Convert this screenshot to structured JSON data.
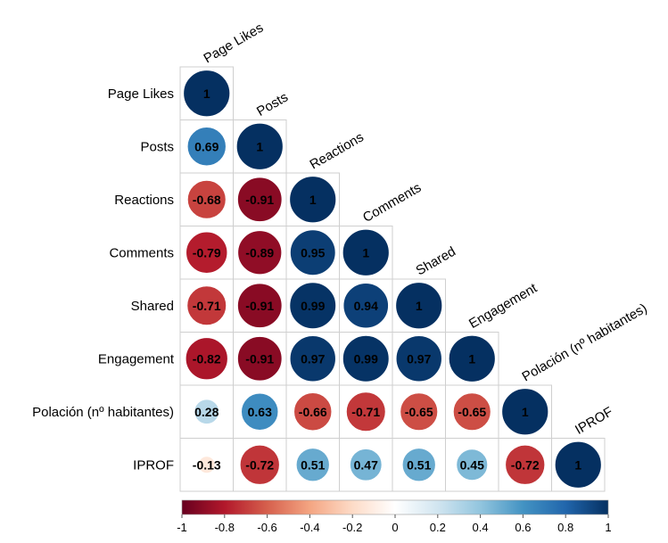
{
  "chart_data": {
    "type": "heatmap",
    "style": "corrplot-lower-circle",
    "variables": [
      "Page Likes",
      "Posts",
      "Reactions",
      "Comments",
      "Shared",
      "Engagement",
      "Polación (nº habitantes)",
      "IPROF"
    ],
    "matrix_lower": [
      [
        1
      ],
      [
        0.69,
        1
      ],
      [
        -0.68,
        -0.91,
        1
      ],
      [
        -0.79,
        -0.89,
        0.95,
        1
      ],
      [
        -0.71,
        -0.91,
        0.99,
        0.94,
        1
      ],
      [
        -0.82,
        -0.91,
        0.97,
        0.99,
        0.97,
        1
      ],
      [
        0.28,
        0.63,
        -0.66,
        -0.71,
        -0.65,
        -0.65,
        1
      ],
      [
        -0.13,
        -0.72,
        0.51,
        0.47,
        0.51,
        0.45,
        -0.72,
        1
      ]
    ],
    "value_labels": [
      [
        "1"
      ],
      [
        "0.69",
        "1"
      ],
      [
        "-0.68",
        "-0.91",
        "1"
      ],
      [
        "-0.79",
        "-0.89",
        "0.95",
        "1"
      ],
      [
        "-0.71",
        "-0.91",
        "0.99",
        "0.94",
        "1"
      ],
      [
        "-0.82",
        "-0.91",
        "0.97",
        "0.99",
        "0.97",
        "1"
      ],
      [
        "0.28",
        "0.63",
        "-0.66",
        "-0.71",
        "-0.65",
        "-0.65",
        "1"
      ],
      [
        "-0.13",
        "-0.72",
        "0.51",
        "0.47",
        "0.51",
        "0.45",
        "-0.72",
        "1"
      ]
    ],
    "colorbar": {
      "range": [
        -1,
        1
      ],
      "ticks": [
        "-1",
        "-0.8",
        "-0.6",
        "-0.4",
        "-0.2",
        "0",
        "0.2",
        "0.4",
        "0.6",
        "0.8",
        "1"
      ],
      "colors": [
        "#67001F",
        "#B2182B",
        "#D6604D",
        "#F4A582",
        "#FDDBC7",
        "#FFFFFF",
        "#D1E5F0",
        "#92C5DE",
        "#4393C3",
        "#2166AC",
        "#053061"
      ]
    },
    "legend": "bottom"
  }
}
